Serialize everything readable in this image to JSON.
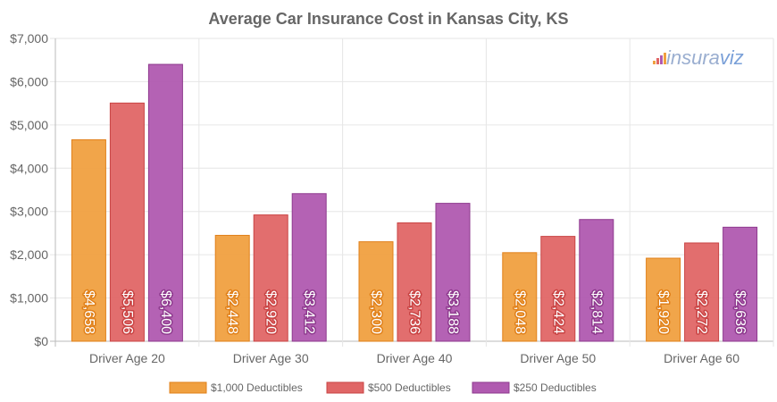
{
  "chart_data": {
    "type": "bar",
    "title": "Average Car Insurance Cost in Kansas City, KS",
    "categories": [
      "Driver Age 20",
      "Driver Age 30",
      "Driver Age 40",
      "Driver Age 50",
      "Driver Age 60"
    ],
    "series": [
      {
        "name": "$1,000 Deductibles",
        "color": "#f0a040",
        "label_stroke": "#e0801a",
        "values": [
          4658,
          2448,
          2300,
          2048,
          1920
        ],
        "labels": [
          "$4,658",
          "$2,448",
          "$2,300",
          "$2,048",
          "$1,920"
        ]
      },
      {
        "name": "$500 Deductibles",
        "color": "#e06666",
        "label_stroke": "#c94444",
        "values": [
          5506,
          2920,
          2736,
          2424,
          2272
        ],
        "labels": [
          "$5,506",
          "$2,920",
          "$2,736",
          "$2,424",
          "$2,272"
        ]
      },
      {
        "name": "$250 Deductibles",
        "color": "#b05ab0",
        "label_stroke": "#8e3a8e",
        "values": [
          6400,
          3412,
          3188,
          2814,
          2636
        ],
        "labels": [
          "$6,400",
          "$3,412",
          "$3,188",
          "$2,814",
          "$2,636"
        ]
      }
    ],
    "ylim": [
      0,
      7000
    ],
    "yticks": [
      0,
      1000,
      2000,
      3000,
      4000,
      5000,
      6000,
      7000
    ],
    "ytick_labels": [
      "$0",
      "$1,000",
      "$2,000",
      "$3,000",
      "$4,000",
      "$5,000",
      "$6,000",
      "$7,000"
    ],
    "grid": true,
    "legend_position": "bottom"
  },
  "watermark": {
    "text_main": "insura",
    "text_accent": "viz",
    "color_main": "#9aaed0",
    "color_accent": "#7aa0d8",
    "bar_colors": [
      "#f0a040",
      "#e06666",
      "#b05ab0",
      "#f0a040"
    ]
  }
}
